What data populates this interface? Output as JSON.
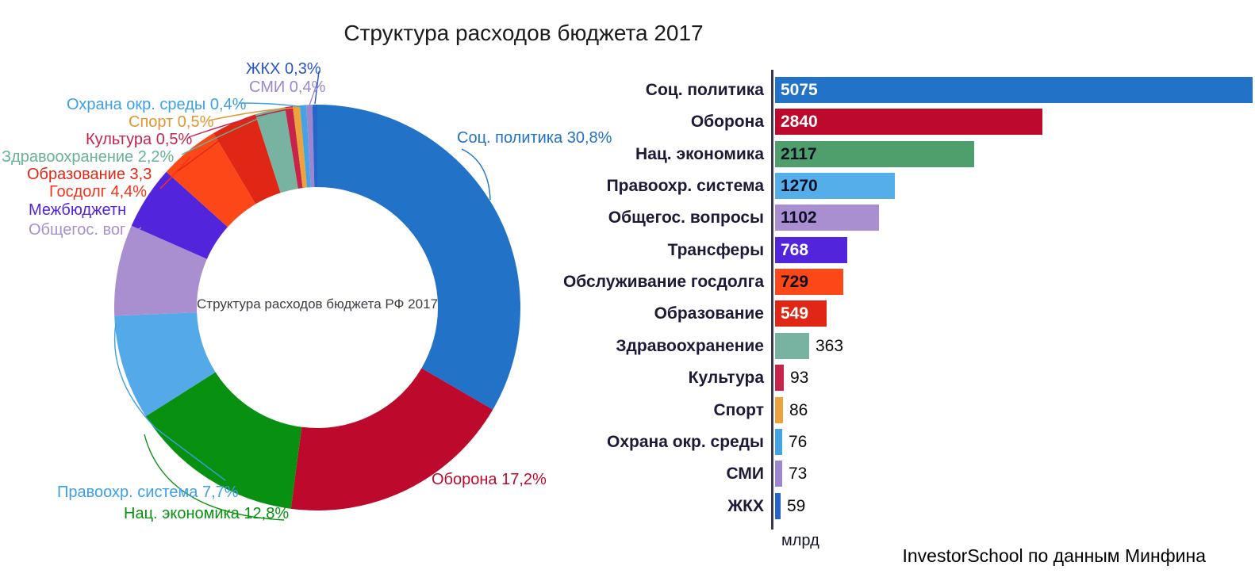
{
  "page": {
    "title": "Структура расходов бюджета 2017",
    "axis_unit": "млрд",
    "attribution": "InvestorSchool по данным Минфина"
  },
  "chart_data": [
    {
      "type": "pie",
      "donut": true,
      "title": "Структура расходов бюджета 2017",
      "center_label": "Структура расходов бюджета РФ 2017",
      "start_angle_deg": 0,
      "direction": "clockwise",
      "slices": [
        {
          "id": "soc-politika",
          "label": "Соц. политика",
          "callout_text": "Соц. политика 30,8%",
          "percent": 30.8,
          "value": 5075,
          "color": "#2272c8",
          "label_color": "#2272c8"
        },
        {
          "id": "oborona",
          "label": "Оборона",
          "callout_text": "Оборона 17,2%",
          "percent": 17.2,
          "value": 2840,
          "color": "#bd092b",
          "label_color": "#bd092b"
        },
        {
          "id": "nac-ekonomika",
          "label": "Нац. экономика",
          "callout_text": "Нац. экономика 12,8%",
          "percent": 12.8,
          "value": 2117,
          "color": "#089110",
          "label_color": "#089110"
        },
        {
          "id": "pravoohr-sistema",
          "label": "Правоохр. система",
          "callout_text": "Правоохр. система 7,7%",
          "percent": 7.7,
          "value": 1270,
          "color": "#54aae8",
          "label_color": "#3d9fe6"
        },
        {
          "id": "obshchegos-voprosy",
          "label": "Общегос. вопросы",
          "callout_text": "Общегос. вог",
          "percent": null,
          "value": 1102,
          "color": "#a98fd0",
          "label_color": "#a98fd0"
        },
        {
          "id": "transfery",
          "label": "Трансферы",
          "callout_text": "Межбюджетн",
          "percent": null,
          "value": 768,
          "color": "#5224dc",
          "label_color": "#5224dc"
        },
        {
          "id": "gosdolg",
          "label": "Госдолг",
          "callout_text": "Госдолг 4,4%",
          "percent": 4.4,
          "value": 729,
          "color": "#fc4819",
          "label_color": "#f8311a"
        },
        {
          "id": "obrazovanie",
          "label": "Образование",
          "callout_text": "Образование 3,3",
          "percent": 3.3,
          "value": 549,
          "color": "#e02715",
          "label_color": "#e02715"
        },
        {
          "id": "zdravoohranenie",
          "label": "Здравоохранение",
          "callout_text": "Здравоохранение 2,2%",
          "percent": 2.2,
          "value": 363,
          "color": "#78b3a1",
          "label_color": "#69b295"
        },
        {
          "id": "kultura",
          "label": "Культура",
          "callout_text": "Культура 0,5%",
          "percent": 0.5,
          "value": 93,
          "color": "#c62449",
          "label_color": "#c62449"
        },
        {
          "id": "sport",
          "label": "Спорт",
          "callout_text": "Спорт 0,5%",
          "percent": 0.5,
          "value": 86,
          "color": "#eda33d",
          "label_color": "#e1972f"
        },
        {
          "id": "ohrana-okr-sredy",
          "label": "Охрана окр. среды",
          "callout_text": "Охрана окр. среды 0,4%",
          "percent": 0.4,
          "value": 76,
          "color": "#44a3e4",
          "label_color": "#3d9fe6"
        },
        {
          "id": "smi",
          "label": "СМИ",
          "callout_text": "СМИ 0,4%",
          "percent": 0.4,
          "value": 73,
          "color": "#9c86d0",
          "label_color": "#9c86d0"
        },
        {
          "id": "zhkh",
          "label": "ЖКХ",
          "callout_text": "ЖКХ 0,3%",
          "percent": 0.3,
          "value": 59,
          "color": "#2565c8",
          "label_color": "#2a55c8"
        }
      ]
    },
    {
      "type": "bar",
      "orientation": "horizontal",
      "unit": "млрд",
      "xlim": [
        0,
        5075
      ],
      "bars": [
        {
          "id": "soc-politika",
          "label": "Соц. политика",
          "value": 5075,
          "color": "#2272c8",
          "value_color": "#ffffff"
        },
        {
          "id": "oborona",
          "label": "Оборона",
          "value": 2840,
          "color": "#bd092b",
          "value_color": "#ffffff"
        },
        {
          "id": "nac-ekonomika",
          "label": "Нац. экономика",
          "value": 2117,
          "color": "#4f9f6d",
          "value_color": "#0e0e24"
        },
        {
          "id": "pravoohr-sistema",
          "label": "Правоохр. система",
          "value": 1270,
          "color": "#54aee9",
          "value_color": "#0e0e24"
        },
        {
          "id": "obshchegos-voprosy",
          "label": "Общегос. вопросы",
          "value": 1102,
          "color": "#a98fd0",
          "value_color": "#0e0e24"
        },
        {
          "id": "transfery",
          "label": "Трансферы",
          "value": 768,
          "color": "#5224dc",
          "value_color": "#ffffff"
        },
        {
          "id": "obsluzhivanie-gosdolga",
          "label": "Обслуживание госдолга",
          "value": 729,
          "color": "#fc4819",
          "value_color": "#0e0e24"
        },
        {
          "id": "obrazovanie",
          "label": "Образование",
          "value": 549,
          "color": "#e02715",
          "value_color": "#ffffff"
        },
        {
          "id": "zdravoohranenie",
          "label": "Здравоохранение",
          "value": 363,
          "color": "#78b3a1",
          "value_color": "#0a0a0a"
        },
        {
          "id": "kultura",
          "label": "Культура",
          "value": 93,
          "color": "#c62449",
          "value_color": "#0a0a0a"
        },
        {
          "id": "sport",
          "label": "Спорт",
          "value": 86,
          "color": "#eda33d",
          "value_color": "#0a0a0a"
        },
        {
          "id": "ohrana-okr-sredy",
          "label": "Охрана окр. среды",
          "value": 76,
          "color": "#44a3e4",
          "value_color": "#0a0a0a"
        },
        {
          "id": "smi",
          "label": "СМИ",
          "value": 73,
          "color": "#9c86d0",
          "value_color": "#0a0a0a"
        },
        {
          "id": "zhkh",
          "label": "ЖКХ",
          "value": 59,
          "color": "#2565c8",
          "value_color": "#0a0a0a"
        }
      ]
    }
  ]
}
